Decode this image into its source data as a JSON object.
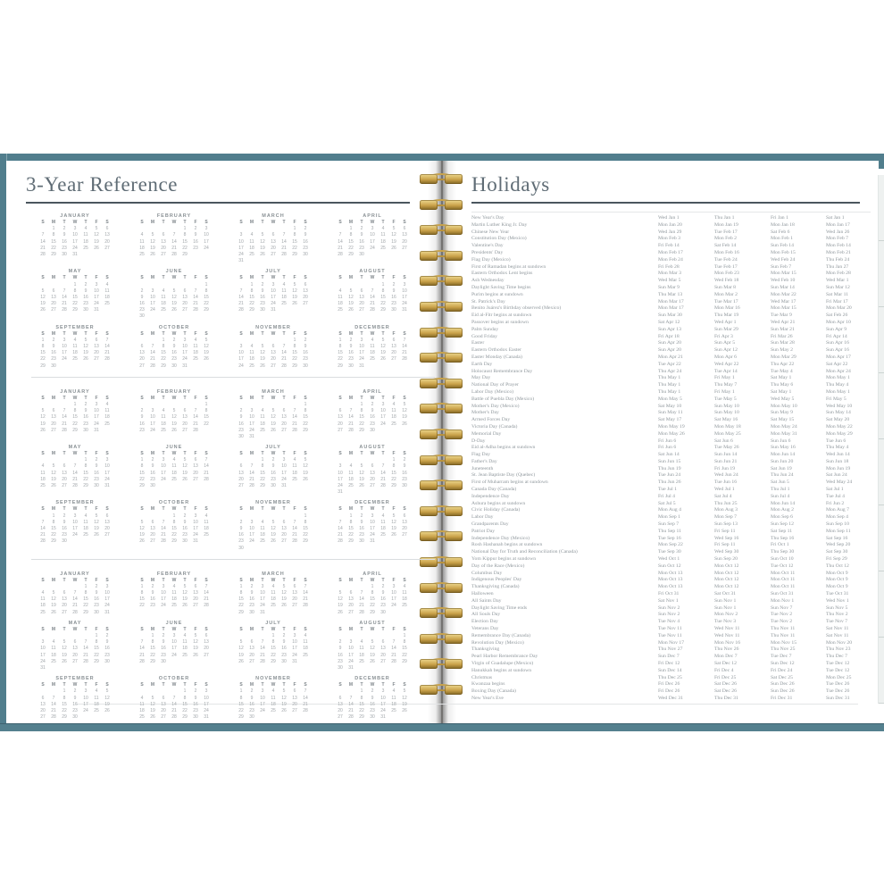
{
  "left_page": {
    "title": "3-Year Reference",
    "weekday_header": [
      "S",
      "M",
      "T",
      "W",
      "T",
      "F",
      "S"
    ],
    "years": [
      {
        "months": [
          {
            "name": "JANUARY",
            "first_dow": 1,
            "days": 31
          },
          {
            "name": "FEBRUARY",
            "first_dow": 4,
            "days": 29
          },
          {
            "name": "MARCH",
            "first_dow": 5,
            "days": 31
          },
          {
            "name": "APRIL",
            "first_dow": 1,
            "days": 30
          },
          {
            "name": "MAY",
            "first_dow": 3,
            "days": 31
          },
          {
            "name": "JUNE",
            "first_dow": 6,
            "days": 30
          },
          {
            "name": "JULY",
            "first_dow": 1,
            "days": 31
          },
          {
            "name": "AUGUST",
            "first_dow": 4,
            "days": 31
          },
          {
            "name": "SEPTEMBER",
            "first_dow": 0,
            "days": 30
          },
          {
            "name": "OCTOBER",
            "first_dow": 2,
            "days": 31
          },
          {
            "name": "NOVEMBER",
            "first_dow": 5,
            "days": 30
          },
          {
            "name": "DECEMBER",
            "first_dow": 0,
            "days": 31
          }
        ]
      },
      {
        "months": [
          {
            "name": "JANUARY",
            "first_dow": 3,
            "days": 31
          },
          {
            "name": "FEBRUARY",
            "first_dow": 6,
            "days": 28
          },
          {
            "name": "MARCH",
            "first_dow": 6,
            "days": 31
          },
          {
            "name": "APRIL",
            "first_dow": 2,
            "days": 30
          },
          {
            "name": "MAY",
            "first_dow": 4,
            "days": 31
          },
          {
            "name": "JUNE",
            "first_dow": 0,
            "days": 30
          },
          {
            "name": "JULY",
            "first_dow": 2,
            "days": 31
          },
          {
            "name": "AUGUST",
            "first_dow": 5,
            "days": 31
          },
          {
            "name": "SEPTEMBER",
            "first_dow": 1,
            "days": 30
          },
          {
            "name": "OCTOBER",
            "first_dow": 3,
            "days": 31
          },
          {
            "name": "NOVEMBER",
            "first_dow": 6,
            "days": 30
          },
          {
            "name": "DECEMBER",
            "first_dow": 1,
            "days": 31
          }
        ]
      },
      {
        "months": [
          {
            "name": "JANUARY",
            "first_dow": 4,
            "days": 31
          },
          {
            "name": "FEBRUARY",
            "first_dow": 0,
            "days": 28
          },
          {
            "name": "MARCH",
            "first_dow": 0,
            "days": 31
          },
          {
            "name": "APRIL",
            "first_dow": 3,
            "days": 30
          },
          {
            "name": "MAY",
            "first_dow": 5,
            "days": 31
          },
          {
            "name": "JUNE",
            "first_dow": 1,
            "days": 30
          },
          {
            "name": "JULY",
            "first_dow": 3,
            "days": 31
          },
          {
            "name": "AUGUST",
            "first_dow": 6,
            "days": 31
          },
          {
            "name": "SEPTEMBER",
            "first_dow": 2,
            "days": 30
          },
          {
            "name": "OCTOBER",
            "first_dow": 4,
            "days": 31
          },
          {
            "name": "NOVEMBER",
            "first_dow": 0,
            "days": 30
          },
          {
            "name": "DECEMBER",
            "first_dow": 2,
            "days": 31
          }
        ]
      }
    ]
  },
  "right_page": {
    "title": "Holidays",
    "holidays": [
      {
        "name": "New Year's Day",
        "dates": [
          "Wed Jan 1",
          "Thu Jan 1",
          "Fri Jan 1",
          "Sat Jan 1"
        ]
      },
      {
        "name": "Martin Luther King Jr. Day",
        "dates": [
          "Mon Jan 20",
          "Mon Jan 19",
          "Mon Jan 18",
          "Mon Jan 17"
        ]
      },
      {
        "name": "Chinese New Year",
        "dates": [
          "Wed Jan 29",
          "Tue Feb 17",
          "Sat Feb 6",
          "Wed Jan 26"
        ]
      },
      {
        "name": "Constitution Day (Mexico)",
        "dates": [
          "Mon Feb 3",
          "Mon Feb 2",
          "Mon Feb 1",
          "Mon Feb 7"
        ]
      },
      {
        "name": "Valentine's Day",
        "dates": [
          "Fri Feb 14",
          "Sat Feb 14",
          "Sun Feb 14",
          "Mon Feb 14"
        ]
      },
      {
        "name": "Presidents' Day",
        "dates": [
          "Mon Feb 17",
          "Mon Feb 16",
          "Mon Feb 15",
          "Mon Feb 21"
        ]
      },
      {
        "name": "Flag Day (Mexico)",
        "dates": [
          "Mon Feb 24",
          "Tue Feb 24",
          "Wed Feb 24",
          "Thu Feb 24"
        ]
      },
      {
        "name": "First of Ramadan begins at sundown",
        "dates": [
          "Fri Feb 28",
          "Tue Feb 17",
          "Sun Feb 7",
          "Thu Jan 27"
        ]
      },
      {
        "name": "Eastern Orthodox Lent begins",
        "dates": [
          "Mon Mar 3",
          "Mon Feb 23",
          "Mon Mar 15",
          "Mon Feb 28"
        ]
      },
      {
        "name": "Ash Wednesday",
        "dates": [
          "Wed Mar 5",
          "Wed Feb 18",
          "Wed Feb 10",
          "Wed Mar 1"
        ]
      },
      {
        "name": "Daylight Saving Time begins",
        "dates": [
          "Sun Mar 9",
          "Sun Mar 8",
          "Sun Mar 14",
          "Sun Mar 12"
        ]
      },
      {
        "name": "Purim begins at sundown",
        "dates": [
          "Thu Mar 13",
          "Mon Mar 2",
          "Mon Mar 22",
          "Sat Mar 11"
        ]
      },
      {
        "name": "St. Patrick's Day",
        "dates": [
          "Mon Mar 17",
          "Tue Mar 17",
          "Wed Mar 17",
          "Fri Mar 17"
        ]
      },
      {
        "name": "Benito Juárez's Birthday observed (Mexico)",
        "dates": [
          "Mon Mar 17",
          "Mon Mar 16",
          "Mon Mar 15",
          "Mon Mar 20"
        ]
      },
      {
        "name": "Eid al-Fitr begins at sundown",
        "dates": [
          "Sun Mar 30",
          "Thu Mar 19",
          "Tue Mar 9",
          "Sat Feb 26"
        ]
      },
      {
        "name": "Passover begins at sundown",
        "dates": [
          "Sat Apr 12",
          "Wed Apr 1",
          "Wed Apr 21",
          "Mon Apr 10"
        ]
      },
      {
        "name": "Palm Sunday",
        "dates": [
          "Sun Apr 13",
          "Sun Mar 29",
          "Sun Mar 21",
          "Sun Apr 9"
        ]
      },
      {
        "name": "Good Friday",
        "dates": [
          "Fri Apr 18",
          "Fri Apr 3",
          "Fri Mar 26",
          "Fri Apr 14"
        ]
      },
      {
        "name": "Easter",
        "dates": [
          "Sun Apr 20",
          "Sun Apr 5",
          "Sun Mar 28",
          "Sun Apr 16"
        ]
      },
      {
        "name": "Eastern Orthodox Easter",
        "dates": [
          "Sun Apr 20",
          "Sun Apr 12",
          "Sun May 2",
          "Sun Apr 16"
        ]
      },
      {
        "name": "Easter Monday (Canada)",
        "dates": [
          "Mon Apr 21",
          "Mon Apr 6",
          "Mon Mar 29",
          "Mon Apr 17"
        ]
      },
      {
        "name": "Earth Day",
        "dates": [
          "Tue Apr 22",
          "Wed Apr 22",
          "Thu Apr 22",
          "Sat Apr 22"
        ]
      },
      {
        "name": "Holocaust Remembrance Day",
        "dates": [
          "Thu Apr 24",
          "Tue Apr 14",
          "Tue May 4",
          "Mon Apr 24"
        ]
      },
      {
        "name": "May Day",
        "dates": [
          "Thu May 1",
          "Fri May 1",
          "Sat May 1",
          "Mon May 1"
        ]
      },
      {
        "name": "National Day of Prayer",
        "dates": [
          "Thu May 1",
          "Thu May 7",
          "Thu May 6",
          "Thu May 4"
        ]
      },
      {
        "name": "Labor Day (Mexico)",
        "dates": [
          "Thu May 1",
          "Fri May 1",
          "Sat May 1",
          "Mon May 1"
        ]
      },
      {
        "name": "Battle of Puebla Day (Mexico)",
        "dates": [
          "Mon May 5",
          "Tue May 5",
          "Wed May 5",
          "Fri May 5"
        ]
      },
      {
        "name": "Mother's Day (Mexico)",
        "dates": [
          "Sat May 10",
          "Sun May 10",
          "Mon May 10",
          "Wed May 10"
        ]
      },
      {
        "name": "Mother's Day",
        "dates": [
          "Sun May 11",
          "Sun May 10",
          "Sun May 9",
          "Sun May 14"
        ]
      },
      {
        "name": "Armed Forces Day",
        "dates": [
          "Sat May 17",
          "Sat May 16",
          "Sat May 15",
          "Sat May 20"
        ]
      },
      {
        "name": "Victoria Day (Canada)",
        "dates": [
          "Mon May 19",
          "Mon May 18",
          "Mon May 24",
          "Mon May 22"
        ]
      },
      {
        "name": "Memorial Day",
        "dates": [
          "Mon May 26",
          "Mon May 25",
          "Mon May 31",
          "Mon May 29"
        ]
      },
      {
        "name": "D-Day",
        "dates": [
          "Fri Jun 6",
          "Sat Jun 6",
          "Sun Jun 6",
          "Tue Jun 6"
        ]
      },
      {
        "name": "Eid al-Adha begins at sundown",
        "dates": [
          "Fri Jun 6",
          "Tue May 26",
          "Sun May 16",
          "Thu May 4"
        ]
      },
      {
        "name": "Flag Day",
        "dates": [
          "Sat Jun 14",
          "Sun Jun 14",
          "Mon Jun 14",
          "Wed Jun 14"
        ]
      },
      {
        "name": "Father's Day",
        "dates": [
          "Sun Jun 15",
          "Sun Jun 21",
          "Sun Jun 20",
          "Sun Jun 18"
        ]
      },
      {
        "name": "Juneteenth",
        "dates": [
          "Thu Jun 19",
          "Fri Jun 19",
          "Sat Jun 19",
          "Mon Jun 19"
        ]
      },
      {
        "name": "St. Jean Baptiste Day (Quebec)",
        "dates": [
          "Tue Jun 24",
          "Wed Jun 24",
          "Thu Jun 24",
          "Sat Jun 24"
        ]
      },
      {
        "name": "First of Muharram begins at sundown",
        "dates": [
          "Thu Jun 26",
          "Tue Jun 16",
          "Sat Jun 5",
          "Wed May 24"
        ]
      },
      {
        "name": "Canada Day (Canada)",
        "dates": [
          "Tue Jul 1",
          "Wed Jul 1",
          "Thu Jul 1",
          "Sat Jul 1"
        ]
      },
      {
        "name": "Independence Day",
        "dates": [
          "Fri Jul 4",
          "Sat Jul 4",
          "Sun Jul 4",
          "Tue Jul 4"
        ]
      },
      {
        "name": "Ashura begins at sundown",
        "dates": [
          "Sat Jul 5",
          "Thu Jun 25",
          "Mon Jun 14",
          "Fri Jun 2"
        ]
      },
      {
        "name": "Civic Holiday (Canada)",
        "dates": [
          "Mon Aug 4",
          "Mon Aug 3",
          "Mon Aug 2",
          "Mon Aug 7"
        ]
      },
      {
        "name": "Labor Day",
        "dates": [
          "Mon Sep 1",
          "Mon Sep 7",
          "Mon Sep 6",
          "Mon Sep 4"
        ]
      },
      {
        "name": "Grandparents Day",
        "dates": [
          "Sun Sep 7",
          "Sun Sep 13",
          "Sun Sep 12",
          "Sun Sep 10"
        ]
      },
      {
        "name": "Patriot Day",
        "dates": [
          "Thu Sep 11",
          "Fri Sep 11",
          "Sat Sep 11",
          "Mon Sep 11"
        ]
      },
      {
        "name": "Independence Day (Mexico)",
        "dates": [
          "Tue Sep 16",
          "Wed Sep 16",
          "Thu Sep 16",
          "Sat Sep 16"
        ]
      },
      {
        "name": "Rosh Hashanah begins at sundown",
        "dates": [
          "Mon Sep 22",
          "Fri Sep 11",
          "Fri Oct 1",
          "Wed Sep 20"
        ]
      },
      {
        "name": "National Day for Truth and Reconciliation (Canada)",
        "dates": [
          "Tue Sep 30",
          "Wed Sep 30",
          "Thu Sep 30",
          "Sat Sep 30"
        ]
      },
      {
        "name": "Yom Kippur begins at sundown",
        "dates": [
          "Wed Oct 1",
          "Sun Sep 20",
          "Sun Oct 10",
          "Fri Sep 29"
        ]
      },
      {
        "name": "Day of the Race (Mexico)",
        "dates": [
          "Sun Oct 12",
          "Mon Oct 12",
          "Tue Oct 12",
          "Thu Oct 12"
        ]
      },
      {
        "name": "Columbus Day",
        "dates": [
          "Mon Oct 13",
          "Mon Oct 12",
          "Mon Oct 11",
          "Mon Oct 9"
        ]
      },
      {
        "name": "Indigenous Peoples' Day",
        "dates": [
          "Mon Oct 13",
          "Mon Oct 12",
          "Mon Oct 11",
          "Mon Oct 9"
        ]
      },
      {
        "name": "Thanksgiving (Canada)",
        "dates": [
          "Mon Oct 13",
          "Mon Oct 12",
          "Mon Oct 11",
          "Mon Oct 9"
        ]
      },
      {
        "name": "Halloween",
        "dates": [
          "Fri Oct 31",
          "Sat Oct 31",
          "Sun Oct 31",
          "Tue Oct 31"
        ]
      },
      {
        "name": "All Saints Day",
        "dates": [
          "Sat Nov 1",
          "Sun Nov 1",
          "Mon Nov 1",
          "Wed Nov 1"
        ]
      },
      {
        "name": "Daylight Saving Time ends",
        "dates": [
          "Sun Nov 2",
          "Sun Nov 1",
          "Sun Nov 7",
          "Sun Nov 5"
        ]
      },
      {
        "name": "All Souls Day",
        "dates": [
          "Sun Nov 2",
          "Mon Nov 2",
          "Tue Nov 2",
          "Thu Nov 2"
        ]
      },
      {
        "name": "Election Day",
        "dates": [
          "Tue Nov 4",
          "Tue Nov 3",
          "Tue Nov 2",
          "Tue Nov 7"
        ]
      },
      {
        "name": "Veterans Day",
        "dates": [
          "Tue Nov 11",
          "Wed Nov 11",
          "Thu Nov 11",
          "Sat Nov 11"
        ]
      },
      {
        "name": "Remembrance Day (Canada)",
        "dates": [
          "Tue Nov 11",
          "Wed Nov 11",
          "Thu Nov 11",
          "Sat Nov 11"
        ]
      },
      {
        "name": "Revolution Day (Mexico)",
        "dates": [
          "Mon Nov 17",
          "Mon Nov 16",
          "Mon Nov 15",
          "Mon Nov 20"
        ]
      },
      {
        "name": "Thanksgiving",
        "dates": [
          "Thu Nov 27",
          "Thu Nov 26",
          "Thu Nov 25",
          "Thu Nov 23"
        ]
      },
      {
        "name": "Pearl Harbor Remembrance Day",
        "dates": [
          "Sun Dec 7",
          "Mon Dec 7",
          "Tue Dec 7",
          "Thu Dec 7"
        ]
      },
      {
        "name": "Virgin of Guadalupe (Mexico)",
        "dates": [
          "Fri Dec 12",
          "Sat Dec 12",
          "Sun Dec 12",
          "Tue Dec 12"
        ]
      },
      {
        "name": "Hanukkah begins at sundown",
        "dates": [
          "Sun Dec 14",
          "Fri Dec 4",
          "Fri Dec 24",
          "Tue Dec 12"
        ]
      },
      {
        "name": "Christmas",
        "dates": [
          "Thu Dec 25",
          "Fri Dec 25",
          "Sat Dec 25",
          "Mon Dec 25"
        ]
      },
      {
        "name": "Kwanzaa begins",
        "dates": [
          "Fri Dec 26",
          "Sat Dec 26",
          "Sun Dec 26",
          "Tue Dec 26"
        ]
      },
      {
        "name": "Boxing Day (Canada)",
        "dates": [
          "Fri Dec 26",
          "Sat Dec 26",
          "Sun Dec 26",
          "Tue Dec 26"
        ]
      },
      {
        "name": "New Year's Eve",
        "dates": [
          "Wed Dec 31",
          "Thu Dec 31",
          "Fri Dec 31",
          "Sun Dec 31"
        ]
      }
    ]
  },
  "colors": {
    "cover_teal": "#517e8d",
    "coil_gold": "#c8a24b",
    "title_text": "#5f6c75",
    "calendar_text": "#a2a7ab",
    "holiday_text": "#8f979c"
  }
}
